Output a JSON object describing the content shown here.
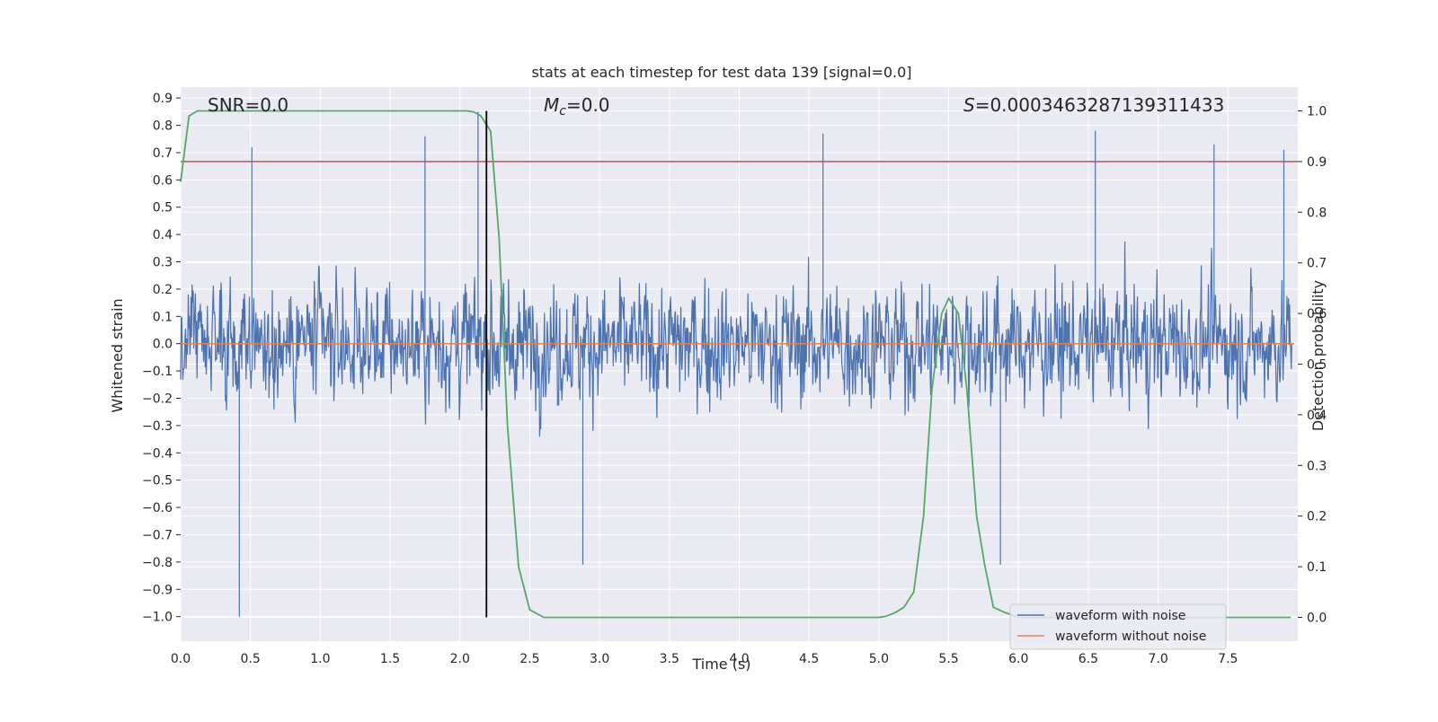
{
  "chart_data": {
    "type": "line",
    "title": "stats at each timestep for test data 139 [signal=0.0]",
    "xlabel": "Time (s)",
    "ylabel": "Whitened strain",
    "y2label": "Detection probability",
    "xlim": [
      0.0,
      8.0
    ],
    "ylim": [
      -1.09,
      0.94
    ],
    "y2lim": [
      -0.047,
      1.047
    ],
    "x_ticks": [
      "0.0",
      "0.5",
      "1.0",
      "1.5",
      "2.0",
      "2.5",
      "3.0",
      "3.5",
      "4.0",
      "4.5",
      "5.0",
      "5.5",
      "6.0",
      "6.5",
      "7.0",
      "7.5"
    ],
    "y_ticks": [
      "0.9",
      "0.8",
      "0.7",
      "0.6",
      "0.5",
      "0.4",
      "0.3",
      "0.2",
      "0.1",
      "0.0",
      "−0.1",
      "−0.2",
      "−0.3",
      "−0.4",
      "−0.5",
      "−0.6",
      "−0.7",
      "−0.8",
      "−0.9",
      "−1.0"
    ],
    "y_tick_values": [
      0.9,
      0.8,
      0.7,
      0.6,
      0.5,
      0.4,
      0.3,
      0.2,
      0.1,
      0.0,
      -0.1,
      -0.2,
      -0.3,
      -0.4,
      -0.5,
      -0.6,
      -0.7,
      -0.8,
      -0.9,
      -1.0
    ],
    "y2_ticks": [
      "1.0",
      "0.9",
      "0.8",
      "0.7",
      "0.6",
      "0.5",
      "0.4",
      "0.3",
      "0.2",
      "0.1",
      "0.0"
    ],
    "y2_tick_values": [
      1.0,
      0.9,
      0.8,
      0.7,
      0.6,
      0.5,
      0.4,
      0.3,
      0.2,
      0.1,
      0.0
    ],
    "annotations": {
      "snr": "SNR=0.0",
      "mc_symbol": "M",
      "mc_subscript": "c",
      "mc_value": "=0.0",
      "s_symbol": "S",
      "s_value": "=0.0003463287139311433"
    },
    "series": [
      {
        "name": "waveform with noise",
        "color": "#4c72b0",
        "axis": "left",
        "description": "whitened noisy strain, roughly Gaussian noise in [-1.0, 0.85]",
        "sample_rate_hz": 256,
        "upper_envelope_range": [
          0.15,
          0.85
        ],
        "lower_envelope_range": [
          -1.0,
          -0.2
        ],
        "extreme_peaks": [
          [
            0.42,
            -1.0
          ],
          [
            0.51,
            0.72
          ],
          [
            1.75,
            0.76
          ],
          [
            2.13,
            0.85
          ],
          [
            2.88,
            -0.81
          ],
          [
            4.6,
            0.77
          ],
          [
            5.87,
            -0.81
          ],
          [
            6.55,
            0.78
          ],
          [
            7.4,
            0.73
          ],
          [
            7.9,
            0.71
          ]
        ]
      },
      {
        "name": "waveform without noise",
        "color": "#dd8452",
        "axis": "left",
        "x": [
          0.0,
          8.0
        ],
        "values": [
          0.0,
          0.0
        ]
      },
      {
        "name": "detection probability",
        "color": "#55a868",
        "axis": "right",
        "x": [
          0.0,
          0.06,
          0.12,
          0.2,
          0.5,
          1.0,
          1.5,
          2.0,
          2.05,
          2.1,
          2.15,
          2.22,
          2.28,
          2.34,
          2.42,
          2.5,
          2.6,
          3.0,
          4.0,
          5.0,
          5.05,
          5.12,
          5.18,
          5.25,
          5.32,
          5.38,
          5.45,
          5.5,
          5.57,
          5.63,
          5.7,
          5.76,
          5.82,
          5.9,
          6.0,
          6.5,
          7.0,
          7.5,
          7.95
        ],
        "values": [
          0.86,
          0.99,
          1.0,
          1.0,
          1.0,
          1.0,
          1.0,
          1.0,
          1.0,
          0.998,
          0.99,
          0.96,
          0.75,
          0.38,
          0.1,
          0.015,
          0.0,
          0.0,
          0.0,
          0.0,
          0.002,
          0.01,
          0.02,
          0.05,
          0.2,
          0.45,
          0.6,
          0.63,
          0.6,
          0.45,
          0.2,
          0.1,
          0.02,
          0.01,
          0.0,
          0.0,
          0.0,
          0.0,
          0.0
        ]
      },
      {
        "name": "detection threshold",
        "color": "#c44e52",
        "axis": "right",
        "x": [
          0.0,
          8.0
        ],
        "values": [
          0.9,
          0.9
        ]
      },
      {
        "name": "detection time marker",
        "color": "#000000",
        "axis": "right",
        "x": [
          2.19,
          2.19
        ],
        "values": [
          0.0,
          1.0
        ]
      }
    ],
    "legend": {
      "location": "lower right",
      "entries": [
        {
          "label": "waveform with noise",
          "color": "#4c72b0"
        },
        {
          "label": "waveform without noise",
          "color": "#dd8452"
        }
      ]
    },
    "grid": true,
    "background_color": "#eaeaf2",
    "grid_color": "#ffffff"
  }
}
